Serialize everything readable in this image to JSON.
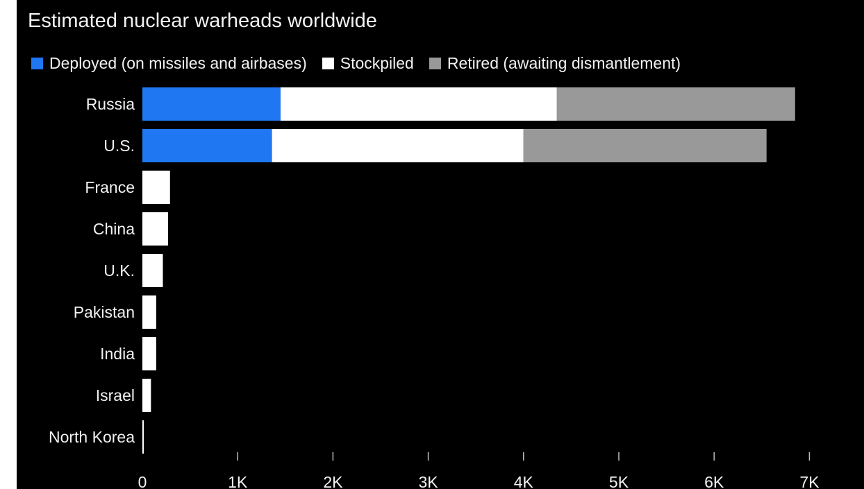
{
  "chart_data": {
    "type": "bar",
    "orientation": "horizontal",
    "stacked": true,
    "title": "Estimated nuclear warheads worldwide",
    "categories": [
      "Russia",
      "U.S.",
      "France",
      "China",
      "U.K.",
      "Pakistan",
      "India",
      "Israel",
      "North Korea"
    ],
    "series": [
      {
        "name": "Deployed (on missiles and airbases)",
        "color": "#1f77f2",
        "values": [
          1450,
          1360,
          0,
          0,
          0,
          0,
          0,
          0,
          0
        ]
      },
      {
        "name": "Stockpiled",
        "color": "#ffffff",
        "values": [
          2900,
          2640,
          290,
          270,
          215,
          145,
          145,
          90,
          10
        ]
      },
      {
        "name": "Retired (awaiting dismantlement)",
        "color": "#999999",
        "values": [
          2500,
          2550,
          0,
          0,
          0,
          0,
          0,
          0,
          0
        ]
      }
    ],
    "x_ticks": [
      "0",
      "1K",
      "2K",
      "3K",
      "4K",
      "5K",
      "6K",
      "7K"
    ],
    "x_tick_values": [
      0,
      1000,
      2000,
      3000,
      4000,
      5000,
      6000,
      7000
    ],
    "xlim": [
      0,
      7000
    ],
    "legend_position": "top-left",
    "grid": false
  }
}
